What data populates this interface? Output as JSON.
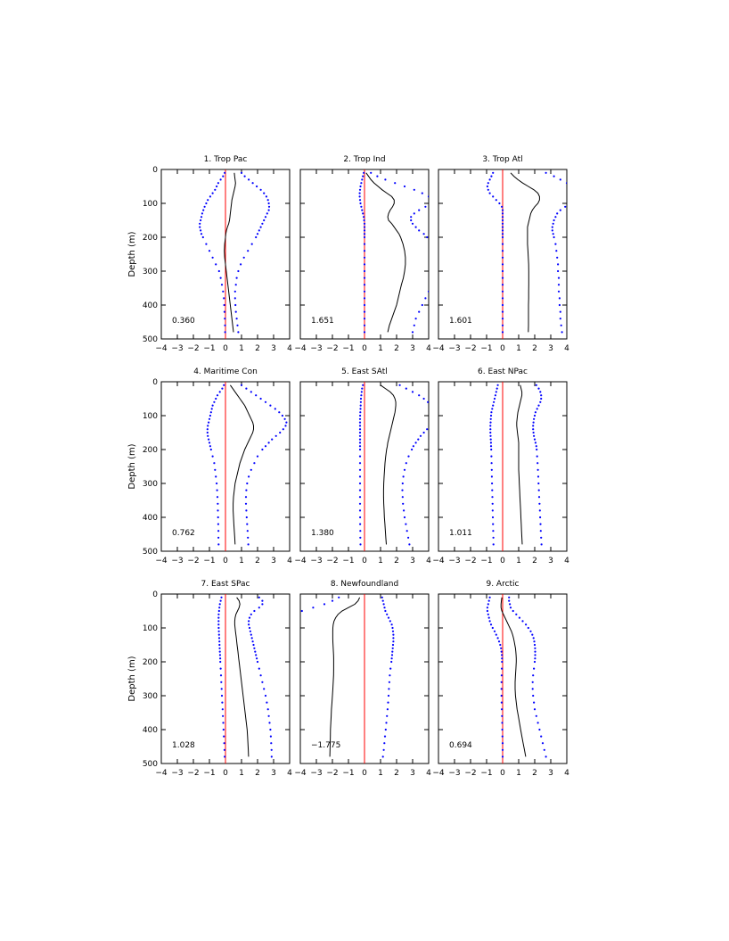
{
  "chart_data": {
    "type": "line",
    "layout": "3x3 grid of vertical depth profiles",
    "ylabel": "Depth (m)",
    "x_range": [
      -4,
      4
    ],
    "x_ticks": [
      -4,
      -3,
      -2,
      -1,
      0,
      1,
      2,
      3,
      4
    ],
    "y_range": [
      0,
      500
    ],
    "y_inverted": true,
    "y_ticks": [
      0,
      100,
      200,
      300,
      400,
      500
    ],
    "colors": {
      "mean": "#000000",
      "spread": "#0000ff",
      "zero_line": "#ff0000"
    },
    "depths": [
      10,
      20,
      30,
      40,
      50,
      60,
      70,
      80,
      90,
      100,
      110,
      120,
      130,
      140,
      150,
      160,
      170,
      180,
      190,
      200,
      220,
      240,
      260,
      280,
      300,
      320,
      340,
      360,
      380,
      400,
      420,
      440,
      460,
      480
    ],
    "panels": [
      {
        "title": "1. Trop Pac",
        "value_label": "0.360",
        "mean": [
          0.55,
          0.57,
          0.6,
          0.63,
          0.6,
          0.55,
          0.5,
          0.45,
          0.4,
          0.38,
          0.35,
          0.33,
          0.3,
          0.28,
          0.25,
          0.2,
          0.12,
          0.06,
          0.02,
          0.0,
          -0.05,
          -0.07,
          -0.05,
          0.0,
          0.05,
          0.1,
          0.15,
          0.2,
          0.25,
          0.3,
          0.35,
          0.4,
          0.45,
          0.5
        ],
        "lower": [
          -0.05,
          -0.15,
          -0.3,
          -0.45,
          -0.55,
          -0.65,
          -0.8,
          -0.95,
          -1.1,
          -1.2,
          -1.3,
          -1.38,
          -1.45,
          -1.5,
          -1.55,
          -1.6,
          -1.6,
          -1.55,
          -1.5,
          -1.4,
          -1.2,
          -1.0,
          -0.8,
          -0.6,
          -0.4,
          -0.3,
          -0.22,
          -0.15,
          -0.1,
          -0.08,
          -0.06,
          -0.04,
          -0.03,
          -0.02
        ],
        "upper": [
          1.0,
          1.2,
          1.45,
          1.7,
          1.95,
          2.2,
          2.4,
          2.55,
          2.65,
          2.7,
          2.72,
          2.7,
          2.6,
          2.5,
          2.4,
          2.3,
          2.2,
          2.1,
          2.0,
          1.9,
          1.65,
          1.4,
          1.15,
          0.95,
          0.8,
          0.7,
          0.65,
          0.6,
          0.6,
          0.62,
          0.65,
          0.7,
          0.75,
          0.8
        ]
      },
      {
        "title": "2. Trop Ind",
        "value_label": "1.651",
        "mean": [
          0.1,
          0.25,
          0.4,
          0.6,
          0.85,
          1.1,
          1.4,
          1.7,
          1.85,
          1.85,
          1.75,
          1.6,
          1.5,
          1.45,
          1.5,
          1.7,
          1.85,
          2.0,
          2.15,
          2.25,
          2.4,
          2.5,
          2.55,
          2.55,
          2.5,
          2.42,
          2.3,
          2.2,
          2.1,
          2.0,
          1.85,
          1.7,
          1.55,
          1.45
        ],
        "lower": [
          -0.05,
          -0.1,
          -0.15,
          -0.2,
          -0.25,
          -0.28,
          -0.3,
          -0.3,
          -0.28,
          -0.25,
          -0.2,
          -0.15,
          -0.1,
          -0.05,
          -0.02,
          0.0,
          0.0,
          0.0,
          0.0,
          0.0,
          0.0,
          0.0,
          0.0,
          0.0,
          0.0,
          0.0,
          0.0,
          0.0,
          0.0,
          0.0,
          0.0,
          0.0,
          0.0,
          0.0
        ],
        "upper": [
          0.4,
          0.8,
          1.3,
          1.9,
          2.5,
          3.1,
          3.6,
          4.0,
          4.2,
          4.1,
          3.8,
          3.4,
          3.1,
          2.9,
          2.9,
          3.0,
          3.2,
          3.4,
          3.7,
          3.9,
          4.3,
          4.6,
          4.8,
          4.9,
          4.8,
          4.6,
          4.3,
          4.0,
          3.8,
          3.6,
          3.4,
          3.2,
          3.1,
          3.0
        ]
      },
      {
        "title": "3. Trop Atl",
        "value_label": "1.601",
        "mean": [
          0.5,
          0.7,
          0.95,
          1.25,
          1.6,
          1.95,
          2.2,
          2.3,
          2.3,
          2.2,
          2.0,
          1.85,
          1.75,
          1.7,
          1.65,
          1.6,
          1.55,
          1.55,
          1.55,
          1.55,
          1.55,
          1.58,
          1.6,
          1.62,
          1.63,
          1.63,
          1.63,
          1.62,
          1.62,
          1.61,
          1.61,
          1.61,
          1.61,
          1.6
        ],
        "lower": [
          -0.6,
          -0.7,
          -0.8,
          -0.9,
          -0.95,
          -0.9,
          -0.8,
          -0.6,
          -0.4,
          -0.2,
          -0.05,
          0.0,
          0.0,
          0.0,
          0.0,
          0.0,
          0.0,
          0.0,
          0.0,
          0.0,
          0.0,
          0.0,
          0.0,
          0.0,
          0.0,
          0.0,
          0.0,
          0.0,
          0.0,
          0.0,
          0.0,
          0.0,
          0.0,
          0.0
        ],
        "upper": [
          2.7,
          3.2,
          3.6,
          4.0,
          4.4,
          4.7,
          4.8,
          4.7,
          4.5,
          4.2,
          3.9,
          3.6,
          3.4,
          3.3,
          3.2,
          3.15,
          3.1,
          3.1,
          3.15,
          3.2,
          3.3,
          3.35,
          3.4,
          3.45,
          3.45,
          3.5,
          3.5,
          3.5,
          3.55,
          3.55,
          3.6,
          3.6,
          3.65,
          3.7
        ]
      },
      {
        "title": "4. Maritime Con",
        "value_label": "0.762",
        "mean": [
          0.3,
          0.45,
          0.6,
          0.75,
          0.9,
          1.05,
          1.2,
          1.3,
          1.4,
          1.5,
          1.6,
          1.7,
          1.75,
          1.75,
          1.7,
          1.6,
          1.5,
          1.4,
          1.3,
          1.2,
          1.05,
          0.9,
          0.8,
          0.7,
          0.6,
          0.55,
          0.5,
          0.48,
          0.48,
          0.5,
          0.52,
          0.55,
          0.58,
          0.6
        ],
        "lower": [
          -0.1,
          -0.2,
          -0.35,
          -0.5,
          -0.6,
          -0.7,
          -0.8,
          -0.85,
          -0.9,
          -0.95,
          -1.0,
          -1.05,
          -1.1,
          -1.12,
          -1.12,
          -1.1,
          -1.05,
          -1.0,
          -0.95,
          -0.9,
          -0.8,
          -0.7,
          -0.65,
          -0.6,
          -0.55,
          -0.52,
          -0.5,
          -0.48,
          -0.47,
          -0.46,
          -0.45,
          -0.44,
          -0.44,
          -0.43
        ],
        "upper": [
          1.0,
          1.3,
          1.6,
          1.9,
          2.2,
          2.5,
          2.8,
          3.1,
          3.35,
          3.55,
          3.7,
          3.8,
          3.75,
          3.6,
          3.4,
          3.15,
          2.9,
          2.7,
          2.5,
          2.3,
          2.0,
          1.8,
          1.6,
          1.45,
          1.35,
          1.3,
          1.28,
          1.28,
          1.3,
          1.32,
          1.35,
          1.38,
          1.4,
          1.42
        ]
      },
      {
        "title": "5. East SAtl",
        "value_label": "1.380",
        "mean": [
          1.0,
          1.3,
          1.6,
          1.8,
          1.9,
          1.95,
          1.95,
          1.93,
          1.9,
          1.85,
          1.8,
          1.75,
          1.7,
          1.65,
          1.6,
          1.55,
          1.5,
          1.45,
          1.42,
          1.38,
          1.32,
          1.28,
          1.25,
          1.22,
          1.2,
          1.19,
          1.19,
          1.2,
          1.22,
          1.24,
          1.27,
          1.3,
          1.33,
          1.36
        ],
        "lower": [
          -0.1,
          -0.15,
          -0.18,
          -0.2,
          -0.22,
          -0.23,
          -0.24,
          -0.25,
          -0.26,
          -0.27,
          -0.28,
          -0.28,
          -0.28,
          -0.28,
          -0.28,
          -0.28,
          -0.28,
          -0.28,
          -0.28,
          -0.28,
          -0.28,
          -0.28,
          -0.28,
          -0.28,
          -0.28,
          -0.28,
          -0.28,
          -0.28,
          -0.28,
          -0.27,
          -0.27,
          -0.26,
          -0.26,
          -0.25
        ],
        "upper": [
          2.2,
          2.6,
          3.0,
          3.4,
          3.7,
          3.95,
          4.15,
          4.3,
          4.4,
          4.45,
          4.4,
          4.3,
          4.1,
          3.9,
          3.7,
          3.5,
          3.35,
          3.2,
          3.05,
          2.95,
          2.75,
          2.6,
          2.5,
          2.42,
          2.38,
          2.36,
          2.38,
          2.4,
          2.45,
          2.5,
          2.58,
          2.65,
          2.73,
          2.8
        ]
      },
      {
        "title": "6. East NPac",
        "value_label": "1.011",
        "mean": [
          1.1,
          1.15,
          1.2,
          1.2,
          1.15,
          1.1,
          1.05,
          1.0,
          0.95,
          0.92,
          0.9,
          0.88,
          0.88,
          0.9,
          0.92,
          0.95,
          0.98,
          1.0,
          1.0,
          1.0,
          1.0,
          1.0,
          1.0,
          1.02,
          1.04,
          1.06,
          1.08,
          1.1,
          1.12,
          1.14,
          1.16,
          1.18,
          1.2,
          1.22
        ],
        "lower": [
          -0.3,
          -0.35,
          -0.4,
          -0.45,
          -0.5,
          -0.55,
          -0.6,
          -0.65,
          -0.7,
          -0.72,
          -0.74,
          -0.75,
          -0.76,
          -0.76,
          -0.76,
          -0.75,
          -0.74,
          -0.73,
          -0.72,
          -0.71,
          -0.7,
          -0.69,
          -0.68,
          -0.67,
          -0.66,
          -0.65,
          -0.64,
          -0.63,
          -0.62,
          -0.61,
          -0.6,
          -0.59,
          -0.58,
          -0.57
        ],
        "upper": [
          2.1,
          2.25,
          2.35,
          2.4,
          2.4,
          2.35,
          2.25,
          2.15,
          2.05,
          2.0,
          1.95,
          1.92,
          1.9,
          1.9,
          1.92,
          1.95,
          2.0,
          2.05,
          2.1,
          2.12,
          2.15,
          2.18,
          2.2,
          2.22,
          2.24,
          2.26,
          2.28,
          2.3,
          2.32,
          2.34,
          2.36,
          2.38,
          2.4,
          2.42
        ]
      },
      {
        "title": "7. East SPac",
        "value_label": "1.028",
        "mean": [
          0.7,
          0.85,
          0.9,
          0.85,
          0.75,
          0.65,
          0.6,
          0.58,
          0.58,
          0.6,
          0.62,
          0.65,
          0.68,
          0.7,
          0.72,
          0.75,
          0.78,
          0.8,
          0.82,
          0.85,
          0.9,
          0.95,
          1.0,
          1.05,
          1.1,
          1.15,
          1.2,
          1.25,
          1.3,
          1.35,
          1.38,
          1.4,
          1.42,
          1.44
        ],
        "lower": [
          -0.25,
          -0.3,
          -0.35,
          -0.38,
          -0.4,
          -0.42,
          -0.43,
          -0.43,
          -0.43,
          -0.42,
          -0.41,
          -0.4,
          -0.39,
          -0.38,
          -0.37,
          -0.36,
          -0.35,
          -0.34,
          -0.33,
          -0.32,
          -0.3,
          -0.28,
          -0.26,
          -0.24,
          -0.22,
          -0.2,
          -0.18,
          -0.16,
          -0.14,
          -0.12,
          -0.1,
          -0.08,
          -0.06,
          -0.05
        ],
        "upper": [
          2.1,
          2.3,
          2.3,
          2.1,
          1.8,
          1.6,
          1.5,
          1.45,
          1.45,
          1.5,
          1.55,
          1.6,
          1.65,
          1.7,
          1.75,
          1.8,
          1.85,
          1.9,
          1.95,
          2.0,
          2.1,
          2.2,
          2.3,
          2.4,
          2.5,
          2.58,
          2.65,
          2.7,
          2.75,
          2.8,
          2.83,
          2.85,
          2.87,
          2.88
        ]
      },
      {
        "title": "8. Newfoundland",
        "value_label": "−1.775",
        "mean": [
          -0.3,
          -0.4,
          -0.6,
          -1.0,
          -1.4,
          -1.65,
          -1.8,
          -1.9,
          -1.95,
          -1.97,
          -1.98,
          -1.98,
          -1.98,
          -1.97,
          -1.96,
          -1.95,
          -1.94,
          -1.93,
          -1.92,
          -1.92,
          -1.92,
          -1.93,
          -1.95,
          -1.97,
          -2.0,
          -2.03,
          -2.06,
          -2.08,
          -2.1,
          -2.12,
          -2.13,
          -2.14,
          -2.15,
          -2.16
        ],
        "lower": [
          -1.6,
          -2.0,
          -2.5,
          -3.2,
          -3.9,
          -4.5,
          -5.0,
          -5.3,
          -5.4,
          -5.5,
          -5.5,
          -5.5,
          -5.4,
          -5.3,
          -5.2,
          -5.1,
          -5.0,
          -4.9,
          -4.8,
          -4.7,
          -4.6,
          -4.5,
          -4.45,
          -4.4,
          -4.38,
          -4.36,
          -4.35,
          -4.35,
          -4.35,
          -4.35,
          -4.35,
          -4.35,
          -4.35,
          -4.35
        ],
        "upper": [
          1.1,
          1.15,
          1.2,
          1.25,
          1.3,
          1.4,
          1.5,
          1.6,
          1.7,
          1.75,
          1.78,
          1.8,
          1.8,
          1.8,
          1.78,
          1.76,
          1.74,
          1.72,
          1.7,
          1.68,
          1.62,
          1.58,
          1.55,
          1.52,
          1.5,
          1.47,
          1.44,
          1.4,
          1.36,
          1.32,
          1.28,
          1.24,
          1.2,
          1.15
        ]
      },
      {
        "title": "9. Arctic",
        "value_label": "0.694",
        "mean": [
          -0.05,
          -0.08,
          -0.1,
          -0.1,
          -0.05,
          0.05,
          0.15,
          0.25,
          0.35,
          0.45,
          0.55,
          0.62,
          0.68,
          0.72,
          0.76,
          0.8,
          0.82,
          0.84,
          0.85,
          0.85,
          0.83,
          0.8,
          0.78,
          0.78,
          0.8,
          0.85,
          0.9,
          0.98,
          1.05,
          1.12,
          1.2,
          1.28,
          1.36,
          1.44
        ],
        "lower": [
          -0.8,
          -0.85,
          -0.9,
          -0.95,
          -0.95,
          -0.9,
          -0.85,
          -0.8,
          -0.72,
          -0.62,
          -0.5,
          -0.4,
          -0.3,
          -0.22,
          -0.15,
          -0.1,
          -0.07,
          -0.05,
          -0.04,
          -0.04,
          -0.05,
          -0.06,
          -0.07,
          -0.07,
          -0.07,
          -0.06,
          -0.05,
          -0.04,
          -0.03,
          -0.02,
          -0.01,
          0.0,
          0.0,
          0.0
        ],
        "upper": [
          0.4,
          0.4,
          0.45,
          0.5,
          0.65,
          0.85,
          1.05,
          1.25,
          1.45,
          1.6,
          1.75,
          1.85,
          1.93,
          1.97,
          2.0,
          2.02,
          2.03,
          2.03,
          2.02,
          2.0,
          1.95,
          1.9,
          1.87,
          1.87,
          1.9,
          1.95,
          2.0,
          2.1,
          2.2,
          2.3,
          2.4,
          2.5,
          2.6,
          2.7
        ]
      }
    ]
  }
}
